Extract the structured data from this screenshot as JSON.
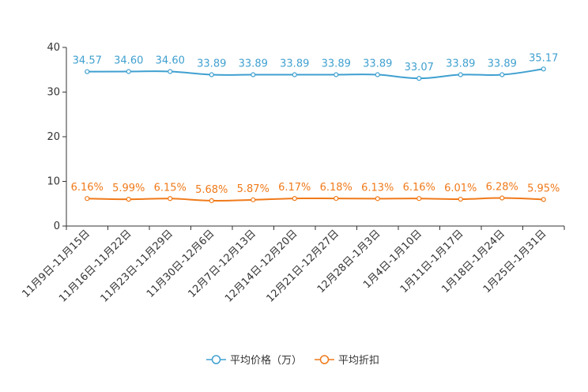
{
  "chart_data": {
    "type": "line",
    "categories": [
      "11月9日-11月15日",
      "11月16日-11月22日",
      "11月23日-11月29日",
      "11月30日-12月6日",
      "12月7日-12月13日",
      "12月14日-12月20日",
      "12月21日-12月27日",
      "12月28日-1月3日",
      "1月4日-1月10日",
      "1月11日-1月17日",
      "1月18日-1月24日",
      "1月25日-1月31日"
    ],
    "ylim": [
      0,
      40
    ],
    "yticks": [
      0,
      10,
      20,
      30,
      40
    ],
    "series": [
      {
        "name": "平均价格（万）",
        "color": "#3fa0d0",
        "values": [
          34.57,
          34.6,
          34.6,
          33.89,
          33.89,
          33.89,
          33.89,
          33.89,
          33.07,
          33.89,
          33.89,
          35.17
        ],
        "labels": [
          "34.57",
          "34.60",
          "34.60",
          "33.89",
          "33.89",
          "33.89",
          "33.89",
          "33.89",
          "33.07",
          "33.89",
          "33.89",
          "35.17"
        ]
      },
      {
        "name": "平均折扣",
        "color": "#f07a1a",
        "values": [
          6.16,
          5.99,
          6.15,
          5.68,
          5.87,
          6.17,
          6.18,
          6.13,
          6.16,
          6.01,
          6.28,
          5.95
        ],
        "labels": [
          "6.16%",
          "5.99%",
          "6.15%",
          "5.68%",
          "5.87%",
          "6.17%",
          "6.18%",
          "6.13%",
          "6.16%",
          "6.01%",
          "6.28%",
          "5.95%"
        ]
      }
    ]
  }
}
